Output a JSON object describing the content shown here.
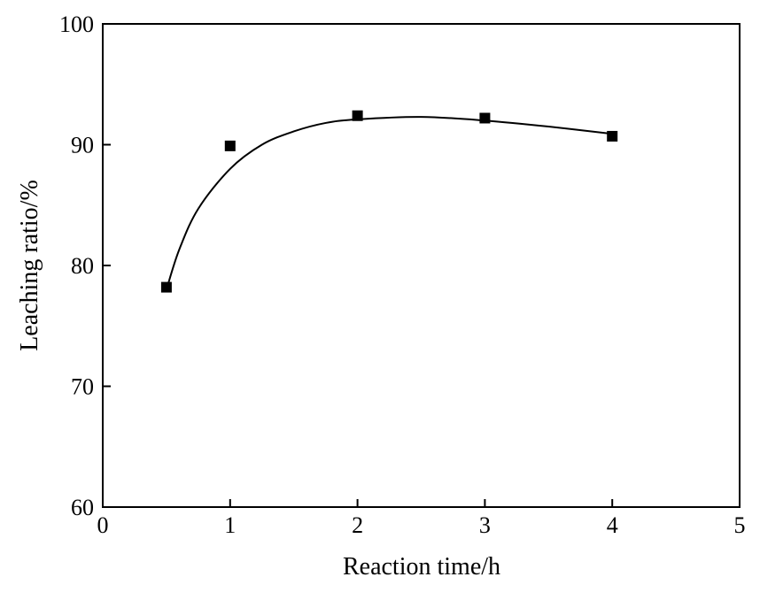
{
  "chart_data": {
    "type": "scatter",
    "title": "",
    "xlabel": "Reaction time/h",
    "ylabel": "Leaching ratio/%",
    "xlim": [
      0,
      5
    ],
    "ylim": [
      60,
      100
    ],
    "xticks": [
      0,
      1,
      2,
      3,
      4,
      5
    ],
    "yticks": [
      60,
      70,
      80,
      90,
      100
    ],
    "xtick_labels": [
      "0",
      "1",
      "2",
      "3",
      "4",
      "5"
    ],
    "ytick_labels": [
      "60",
      "70",
      "80",
      "90",
      "100"
    ],
    "grid": false,
    "legend": "none",
    "marker": "square",
    "fit_curve": "smooth",
    "series": [
      {
        "x": [
          0.5,
          1,
          2,
          3,
          4
        ],
        "y": [
          78.2,
          89.9,
          92.4,
          92.2,
          90.7
        ]
      }
    ],
    "fit_points": [
      [
        0.5,
        78.0
      ],
      [
        0.6,
        81.3
      ],
      [
        0.75,
        84.7
      ],
      [
        1.0,
        88.0
      ],
      [
        1.25,
        90.0
      ],
      [
        1.5,
        91.1
      ],
      [
        1.75,
        91.8
      ],
      [
        2.0,
        92.1
      ],
      [
        2.5,
        92.3
      ],
      [
        3.0,
        92.0
      ],
      [
        3.5,
        91.5
      ],
      [
        4.0,
        90.9
      ]
    ]
  }
}
